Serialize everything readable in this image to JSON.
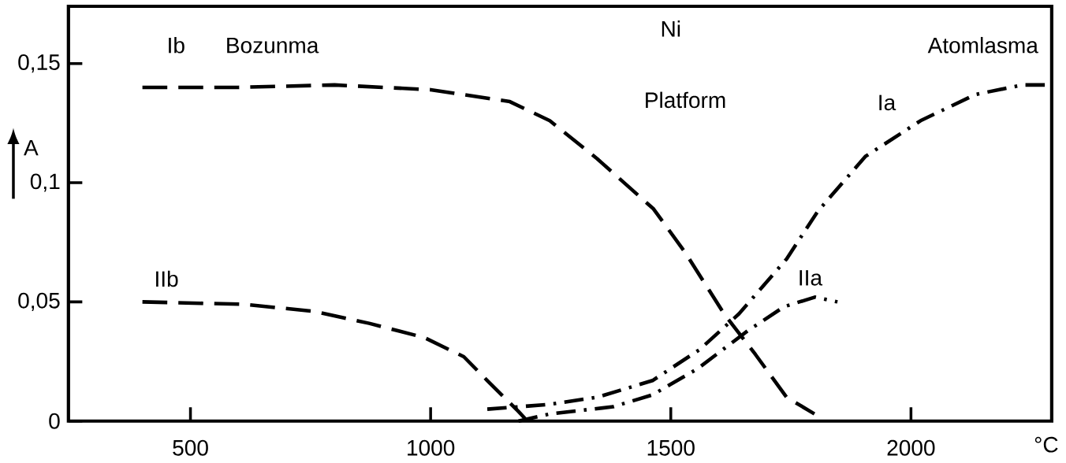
{
  "chart_data": {
    "type": "line",
    "title": "Ni",
    "subtitle": "Platform",
    "xlabel": "°C",
    "ylabel": "A",
    "annotations": [
      "Bozunma",
      "Atomlasma"
    ],
    "xlim": [
      246,
      2293
    ],
    "ylim": [
      0,
      0.174
    ],
    "xticks": [
      500,
      1000,
      1500,
      2000
    ],
    "yticks": [
      0,
      {
        "value": 0.05,
        "label": "0,05"
      },
      {
        "value": 0.1,
        "label": "0,1"
      },
      {
        "value": 0.15,
        "label": "0,15"
      }
    ],
    "grid": false,
    "marker": "none",
    "series": [
      {
        "name": "Ib",
        "color": "#000000",
        "line_style": "dashed",
        "x": [
          400,
          600,
          800,
          1000,
          1165,
          1248,
          1347,
          1464,
          1529,
          1611,
          1676,
          1741,
          1799
        ],
        "values": [
          0.14,
          0.14,
          0.141,
          0.139,
          0.134,
          0.126,
          0.11,
          0.089,
          0.071,
          0.045,
          0.028,
          0.01,
          0.003
        ]
      },
      {
        "name": "IIb",
        "color": "#000000",
        "line_style": "dashed",
        "x": [
          400,
          611,
          758,
          872,
          987,
          1069,
          1118,
          1183,
          1197
        ],
        "values": [
          0.05,
          0.049,
          0.046,
          0.041,
          0.035,
          0.027,
          0.017,
          0.004,
          0.001
        ]
      },
      {
        "name": "Ia",
        "color": "#000000",
        "line_style": "dashdotted",
        "x": [
          1118,
          1248,
          1347,
          1462,
          1560,
          1642,
          1741,
          1806,
          1905,
          2020,
          2134,
          2232,
          2281
        ],
        "values": [
          0.005,
          0.007,
          0.01,
          0.017,
          0.03,
          0.045,
          0.068,
          0.088,
          0.111,
          0.126,
          0.137,
          0.141,
          0.141
        ]
      },
      {
        "name": "IIa",
        "color": "#000000",
        "line_style": "dashdotted",
        "x": [
          1183,
          1248,
          1380,
          1462,
          1556,
          1661,
          1736,
          1800,
          1847
        ],
        "values": [
          0,
          0.003,
          0.006,
          0.011,
          0.022,
          0.038,
          0.048,
          0.052,
          0.05
        ]
      }
    ]
  }
}
